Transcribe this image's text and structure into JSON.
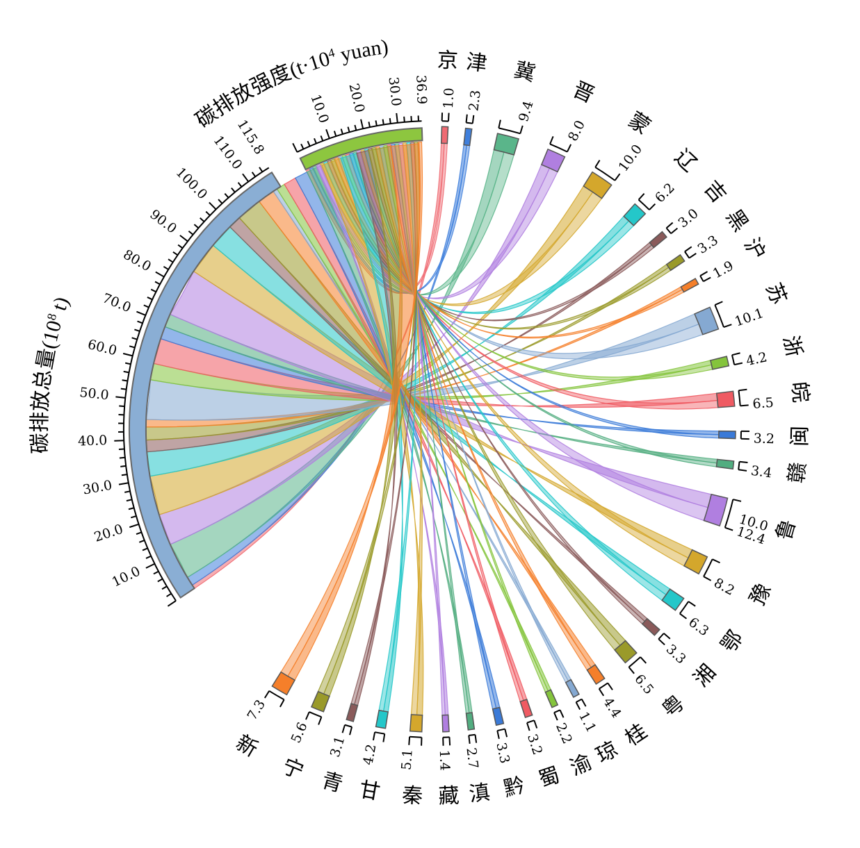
{
  "chart_data": {
    "type": "chord",
    "total_axis": {
      "title_zh": "碳排放总量",
      "title_unit": "(10",
      "title_sup": "8",
      "title_unit_end": " t)",
      "max_label": "115.8",
      "max_value": 115.8,
      "ticks": [
        "10.0",
        "20.0",
        "30.0",
        "40.0",
        "50.0",
        "60.0",
        "70.0",
        "80.0",
        "90.0",
        "100.0",
        "110.0"
      ],
      "color": "#8aaed4"
    },
    "intensity_axis": {
      "title_zh": "碳排放强度",
      "title_unit": "(t·10",
      "title_sup": "4",
      "title_unit_end": " yuan)",
      "max_label": "36.9",
      "max_value": 36.9,
      "ticks": [
        "10.0",
        "20.0",
        "30.0"
      ],
      "color": "#8dc63f"
    },
    "provinces": [
      {
        "name": "京",
        "value_label": "1.0",
        "value": 1.0,
        "color": "#ef6b73"
      },
      {
        "name": "津",
        "value_label": "2.3",
        "value": 2.3,
        "color": "#3f7fdc"
      },
      {
        "name": "冀",
        "value_label": "9.4",
        "value": 9.4,
        "color": "#5ab58a"
      },
      {
        "name": "晋",
        "value_label": "8.0",
        "value": 8.0,
        "color": "#b07fe0"
      },
      {
        "name": "蒙",
        "value_label": "10.0",
        "value": 10.0,
        "color": "#d4a72c"
      },
      {
        "name": "辽",
        "value_label": "6.2",
        "value": 6.2,
        "color": "#24c7c9"
      },
      {
        "name": "吉",
        "value_label": "3.0",
        "value": 3.0,
        "color": "#8a5a5a"
      },
      {
        "name": "黑",
        "value_label": "3.3",
        "value": 3.3,
        "color": "#9a9a2a"
      },
      {
        "name": "沪",
        "value_label": "1.9",
        "value": 1.9,
        "color": "#f57f2a"
      },
      {
        "name": "苏",
        "value_label": "10.1",
        "value": 10.1,
        "color": "#85a9d2"
      },
      {
        "name": "浙",
        "value_label": "4.2",
        "value": 4.2,
        "color": "#84c43c"
      },
      {
        "name": "皖",
        "value_label": "6.5",
        "value": 6.5,
        "color": "#ef5a62"
      },
      {
        "name": "闽",
        "value_label": "3.2",
        "value": 3.2,
        "color": "#3a7ad8"
      },
      {
        "name": "赣",
        "value_label": "3.4",
        "value": 3.4,
        "color": "#52ad80"
      },
      {
        "name": "鲁",
        "value_label": "12.4",
        "value": 12.4,
        "value_label2": "10.0",
        "color": "#b07fe0"
      },
      {
        "name": "豫",
        "value_label": "8.2",
        "value": 8.2,
        "color": "#d4a72c"
      },
      {
        "name": "鄂",
        "value_label": "6.3",
        "value": 6.3,
        "color": "#24c7c9"
      },
      {
        "name": "湘",
        "value_label": "3.3",
        "value": 3.3,
        "color": "#8a5a5a"
      },
      {
        "name": "粤",
        "value_label": "6.5",
        "value": 6.5,
        "color": "#9a9a2a"
      },
      {
        "name": "桂",
        "value_label": "4.4",
        "value": 4.4,
        "color": "#f57f2a"
      },
      {
        "name": "琼",
        "value_label": "1.1",
        "value": 1.1,
        "color": "#85a9d2"
      },
      {
        "name": "渝",
        "value_label": "2.2",
        "value": 2.2,
        "color": "#84c43c"
      },
      {
        "name": "蜀",
        "value_label": "3.2",
        "value": 3.2,
        "color": "#ef5a62"
      },
      {
        "name": "黔",
        "value_label": "3.3",
        "value": 3.3,
        "color": "#3a7ad8"
      },
      {
        "name": "滇",
        "value_label": "2.7",
        "value": 2.7,
        "color": "#52ad80"
      },
      {
        "name": "藏",
        "value_label": "1.4",
        "value": 1.4,
        "color": "#b07fe0"
      },
      {
        "name": "秦",
        "value_label": "5.1",
        "value": 5.1,
        "color": "#d4a72c"
      },
      {
        "name": "甘",
        "value_label": "4.2",
        "value": 4.2,
        "color": "#24c7c9"
      },
      {
        "name": "青",
        "value_label": "3.1",
        "value": 3.1,
        "color": "#8a5a5a"
      },
      {
        "name": "宁",
        "value_label": "5.6",
        "value": 5.6,
        "color": "#9a9a2a"
      },
      {
        "name": "新",
        "value_label": "7.3",
        "value": 7.3,
        "color": "#f57f2a"
      }
    ]
  }
}
